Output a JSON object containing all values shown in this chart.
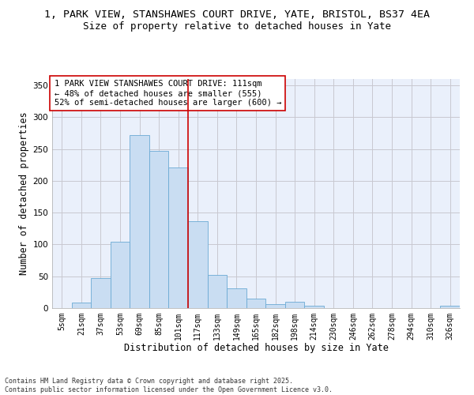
{
  "title_line1": "1, PARK VIEW, STANSHAWES COURT DRIVE, YATE, BRISTOL, BS37 4EA",
  "title_line2": "Size of property relative to detached houses in Yate",
  "xlabel": "Distribution of detached houses by size in Yate",
  "ylabel": "Number of detached properties",
  "categories": [
    "5sqm",
    "21sqm",
    "37sqm",
    "53sqm",
    "69sqm",
    "85sqm",
    "101sqm",
    "117sqm",
    "133sqm",
    "149sqm",
    "165sqm",
    "182sqm",
    "198sqm",
    "214sqm",
    "230sqm",
    "246sqm",
    "262sqm",
    "278sqm",
    "294sqm",
    "310sqm",
    "326sqm"
  ],
  "values": [
    0,
    9,
    47,
    104,
    272,
    247,
    221,
    136,
    52,
    31,
    15,
    6,
    10,
    4,
    0,
    0,
    0,
    0,
    0,
    0,
    4
  ],
  "bar_color": "#c9ddf2",
  "bar_edge_color": "#6aaad4",
  "grid_color": "#c8c8d0",
  "background_color": "#eaf0fb",
  "vline_x": 6.5,
  "vline_color": "#cc0000",
  "annotation_text": "1 PARK VIEW STANSHAWES COURT DRIVE: 111sqm\n← 48% of detached houses are smaller (555)\n52% of semi-detached houses are larger (600) →",
  "annotation_box_color": "#ffffff",
  "annotation_box_edge": "#cc0000",
  "ylim": [
    0,
    360
  ],
  "yticks": [
    0,
    50,
    100,
    150,
    200,
    250,
    300,
    350
  ],
  "footnote": "Contains HM Land Registry data © Crown copyright and database right 2025.\nContains public sector information licensed under the Open Government Licence v3.0.",
  "title_fontsize": 9.5,
  "subtitle_fontsize": 9,
  "axis_label_fontsize": 8.5,
  "tick_fontsize": 7,
  "annotation_fontsize": 7.5,
  "footnote_fontsize": 6
}
